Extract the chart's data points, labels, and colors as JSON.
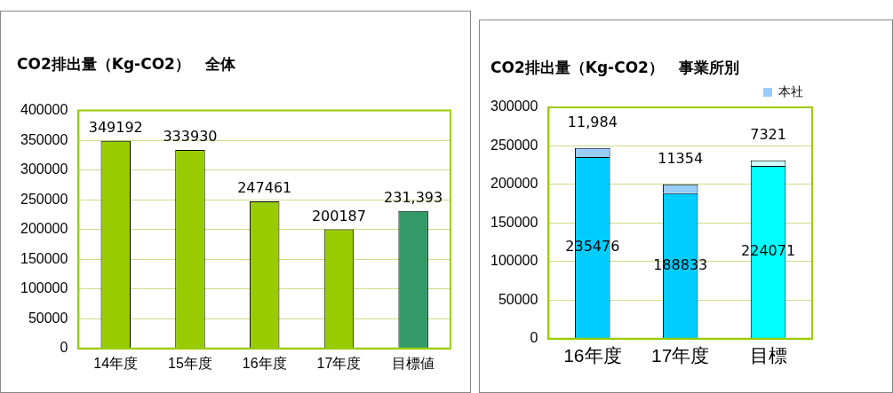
{
  "chart_data": [
    {
      "type": "bar",
      "title": "CO2排出量（Kg-CO2）　全体",
      "categories": [
        "14年度",
        "15年度",
        "16年度",
        "17年度",
        "目標値"
      ],
      "values": [
        349192,
        333930,
        247461,
        200187,
        231393
      ],
      "colors": [
        "#99cc00",
        "#99cc00",
        "#99cc00",
        "#99cc00",
        "#339966"
      ],
      "value_labels": [
        "349192",
        "333930",
        "247461",
        "200187",
        "231,393"
      ],
      "ylim": [
        0,
        400000
      ],
      "yticks": [
        0,
        50000,
        100000,
        150000,
        200000,
        250000,
        300000,
        350000,
        400000
      ],
      "grid": "y"
    },
    {
      "type": "bar",
      "title": "CO2排出量（Kg-CO2）　事業所別",
      "categories": [
        "16年度",
        "17年度",
        "目標"
      ],
      "stacked": true,
      "series": [
        {
          "color": "#00ccff",
          "colors": [
            "#00ccff",
            "#00ccff",
            "#00ffff"
          ],
          "values": [
            235476,
            188833,
            224071
          ],
          "value_labels": [
            "235476",
            "188833",
            "224071"
          ]
        },
        {
          "name": "本社",
          "color": "#99ccff",
          "colors": [
            "#99ccff",
            "#99ccff",
            "#ccffff"
          ],
          "values": [
            11984,
            11354,
            7321
          ],
          "value_labels": [
            "11,984",
            "11354",
            "7321"
          ]
        }
      ],
      "ylim": [
        0,
        300000
      ],
      "yticks": [
        0,
        50000,
        100000,
        150000,
        200000,
        250000,
        300000
      ],
      "grid": "y",
      "legend": "top right"
    }
  ]
}
